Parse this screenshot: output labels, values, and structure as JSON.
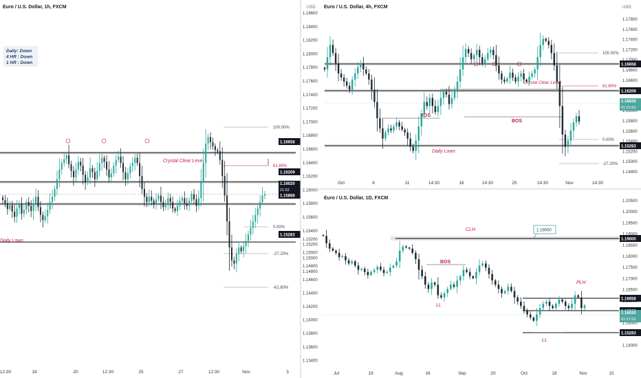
{
  "colors": {
    "up": "#26a69a",
    "down": "#1e2a33",
    "level_line": "#000000",
    "level_band": "#d9d9d9",
    "annotation": "#c2185b",
    "highlight_bg": "#4ea8a0",
    "fib_line": "#888888",
    "grid_sep": "#cccccc"
  },
  "chart_data": [
    {
      "type": "candlestick",
      "title": "Euro / U.S. Dollar, 1h, FXCM",
      "bias_box": [
        "Daily:  Down",
        "4 HR :  Down",
        "1 HR :  Down"
      ],
      "ylim": [
        1.134,
        1.188
      ],
      "x_tick_labels": [
        "12:30",
        "18",
        "20",
        "12:30",
        "25",
        "27",
        "12:30",
        "Nov",
        "3"
      ],
      "levels": [
        {
          "value": 1.16658,
          "label": "1.16658"
        },
        {
          "value": 1.16209,
          "label": "1.16209"
        },
        {
          "value": 1.15868,
          "label": "1.15868"
        },
        {
          "value": 1.15283,
          "label": "1.15283"
        }
      ],
      "price_tag": {
        "value": 1.1602,
        "label": "1.16020",
        "sublabel": "21:52"
      },
      "fib_levels": [
        "100.00%",
        "61.80%",
        "0.00%",
        "-27.20%",
        "-61.80%"
      ],
      "annotations": [
        "Crystal Clear Level",
        "Daily Lows"
      ],
      "closes": [
        1.1593,
        1.1588,
        1.1579,
        1.1585,
        1.1575,
        1.1567,
        1.158,
        1.1586,
        1.1572,
        1.1578,
        1.159,
        1.1584,
        1.1576,
        1.1588,
        1.1598,
        1.1582,
        1.157,
        1.1562,
        1.1568,
        1.1578,
        1.159,
        1.1598,
        1.161,
        1.1625,
        1.164,
        1.165,
        1.1656,
        1.1662,
        1.1648,
        1.1638,
        1.1628,
        1.164,
        1.1652,
        1.1646,
        1.1632,
        1.162,
        1.1628,
        1.1642,
        1.1636,
        1.1625,
        1.1638,
        1.165,
        1.1658,
        1.1652,
        1.164,
        1.1628,
        1.1634,
        1.1646,
        1.1655,
        1.166,
        1.165,
        1.1636,
        1.1625,
        1.1634,
        1.1645,
        1.165,
        1.1658,
        1.165,
        1.163,
        1.161,
        1.1598,
        1.159,
        1.1598,
        1.1592,
        1.1586,
        1.1594,
        1.16,
        1.159,
        1.1582,
        1.1588,
        1.1596,
        1.159,
        1.158,
        1.1576,
        1.1584,
        1.1592,
        1.1596,
        1.1588,
        1.1584,
        1.1592,
        1.1602,
        1.1594,
        1.1584,
        1.1596,
        1.162,
        1.165,
        1.168,
        1.169,
        1.1682,
        1.1676,
        1.167,
        1.1668,
        1.1655,
        1.163,
        1.16,
        1.156,
        1.152,
        1.15,
        1.1495,
        1.151,
        1.152,
        1.1514,
        1.1522,
        1.153,
        1.154,
        1.155,
        1.156,
        1.157,
        1.158,
        1.159,
        1.16,
        1.1602
      ]
    },
    {
      "type": "candlestick",
      "title": "Euro / U.S. Dollar, 4h, FXCM",
      "axis_unit": "USD",
      "ylim": [
        1.147,
        1.187
      ],
      "y_tick_labels": [
        "1.18600",
        "1.18400",
        "1.18200",
        "1.18000",
        "1.17800",
        "1.17600",
        "1.17400",
        "1.17200",
        "1.17000",
        "1.16800",
        "1.16600",
        "1.16400",
        "1.16200",
        "1.16000",
        "1.15800",
        "1.15600",
        "1.15400",
        "1.15200",
        "1.15000",
        "1.14800"
      ],
      "right_tick_labels": [
        "1.17800",
        "1.17600",
        "1.17400",
        "1.17200",
        "1.17000",
        "1.16800",
        "1.16600",
        "1.16400",
        "1.16200",
        "1.16000",
        "1.15800",
        "1.15600",
        "1.15400",
        "1.15200",
        "1.15000",
        "1.14800"
      ],
      "x_tick_labels": [
        "Oct",
        "6",
        "11",
        "14:30",
        "18",
        "14:30",
        "25",
        "14:30",
        "Nov",
        "14:30"
      ],
      "levels": [
        {
          "value": 1.16658,
          "label": "1.16658"
        },
        {
          "value": 1.16209,
          "label": "1.16209"
        },
        {
          "value": 1.15283,
          "label": "1.15283"
        }
      ],
      "price_tag": {
        "value": 1.1602,
        "label": "1.16020",
        "sublabel": "01:21:52"
      },
      "fib_levels": [
        "100.00%",
        "61.80%",
        "0.00%",
        "-27.20%"
      ],
      "annotations": [
        "BOS",
        "BOS",
        "Crystal Clear Level",
        "Daily Lows"
      ],
      "closes": [
        1.173,
        1.176,
        1.179,
        1.177,
        1.1745,
        1.172,
        1.171,
        1.17,
        1.169,
        1.168,
        1.1705,
        1.172,
        1.1735,
        1.1745,
        1.173,
        1.172,
        1.1705,
        1.168,
        1.165,
        1.161,
        1.1585,
        1.156,
        1.1575,
        1.1585,
        1.158,
        1.159,
        1.16,
        1.159,
        1.1582,
        1.1575,
        1.156,
        1.154,
        1.153,
        1.1555,
        1.159,
        1.162,
        1.165,
        1.164,
        1.166,
        1.164,
        1.1625,
        1.164,
        1.166,
        1.1675,
        1.1668,
        1.1645,
        1.166,
        1.168,
        1.17,
        1.173,
        1.176,
        1.178,
        1.177,
        1.1755,
        1.1765,
        1.1778,
        1.176,
        1.1745,
        1.1755,
        1.177,
        1.1778,
        1.1765,
        1.174,
        1.172,
        1.1705,
        1.17,
        1.1708,
        1.1722,
        1.171,
        1.17,
        1.1712,
        1.172,
        1.1705,
        1.17,
        1.1712,
        1.172,
        1.173,
        1.176,
        1.179,
        1.1805,
        1.18,
        1.179,
        1.177,
        1.174,
        1.17,
        1.164,
        1.157,
        1.154,
        1.1555,
        1.158,
        1.16,
        1.1615,
        1.1602
      ]
    },
    {
      "type": "candlestick",
      "title": "Euro / U.S. Dollar, 1D, FXCM",
      "ylim": [
        1.1325,
        1.207
      ],
      "y_tick_labels": [
        "1.15200",
        "1.15000",
        "1.14800",
        "1.14600",
        "1.14400",
        "1.14200",
        "1.14000",
        "1.13800",
        "1.13600",
        "1.13400"
      ],
      "right_tick_labels": [
        "1.20500",
        "1.20000",
        "1.19500",
        "1.19000",
        "1.18500",
        "1.18000",
        "1.17500",
        "1.17000",
        "1.16500",
        "1.16000",
        "1.15500",
        "1.15000",
        "1.14500",
        "1.14000"
      ],
      "x_tick_labels": [
        "Jul",
        "19",
        "Aug",
        "16",
        "Sep",
        "20",
        "Oct",
        "18",
        "Nov",
        "15"
      ],
      "levels": [
        {
          "value": 1.19,
          "label": "1.19000"
        },
        {
          "value": 1.16658,
          "label": "1.16658"
        },
        {
          "value": 1.16209,
          "label": "1.16209"
        },
        {
          "value": 1.15283,
          "label": "1.15283"
        }
      ],
      "price_tag": {
        "value": 1.1602,
        "label": "1.16020",
        "sublabel": "01:21:52"
      },
      "callout": "1.19000",
      "annotations": [
        "CLH",
        "BOS",
        "LL",
        "PLH",
        "LL"
      ],
      "closes": [
        1.193,
        1.1895,
        1.187,
        1.186,
        1.185,
        1.183,
        1.1835,
        1.1815,
        1.18,
        1.181,
        1.179,
        1.177,
        1.1775,
        1.176,
        1.1745,
        1.176,
        1.177,
        1.1785,
        1.177,
        1.1755,
        1.176,
        1.178,
        1.179,
        1.181,
        1.186,
        1.188,
        1.1875,
        1.187,
        1.185,
        1.182,
        1.177,
        1.174,
        1.17,
        1.168,
        1.171,
        1.17,
        1.165,
        1.164,
        1.166,
        1.168,
        1.17,
        1.169,
        1.172,
        1.174,
        1.177,
        1.176,
        1.174,
        1.173,
        1.176,
        1.179,
        1.18,
        1.178,
        1.175,
        1.172,
        1.17,
        1.168,
        1.166,
        1.167,
        1.169,
        1.167,
        1.164,
        1.162,
        1.16,
        1.158,
        1.156,
        1.1545,
        1.153,
        1.156,
        1.159,
        1.161,
        1.162,
        1.16,
        1.159,
        1.161,
        1.163,
        1.162,
        1.16,
        1.159,
        1.161,
        1.165,
        1.164,
        1.159,
        1.1602
      ]
    }
  ]
}
